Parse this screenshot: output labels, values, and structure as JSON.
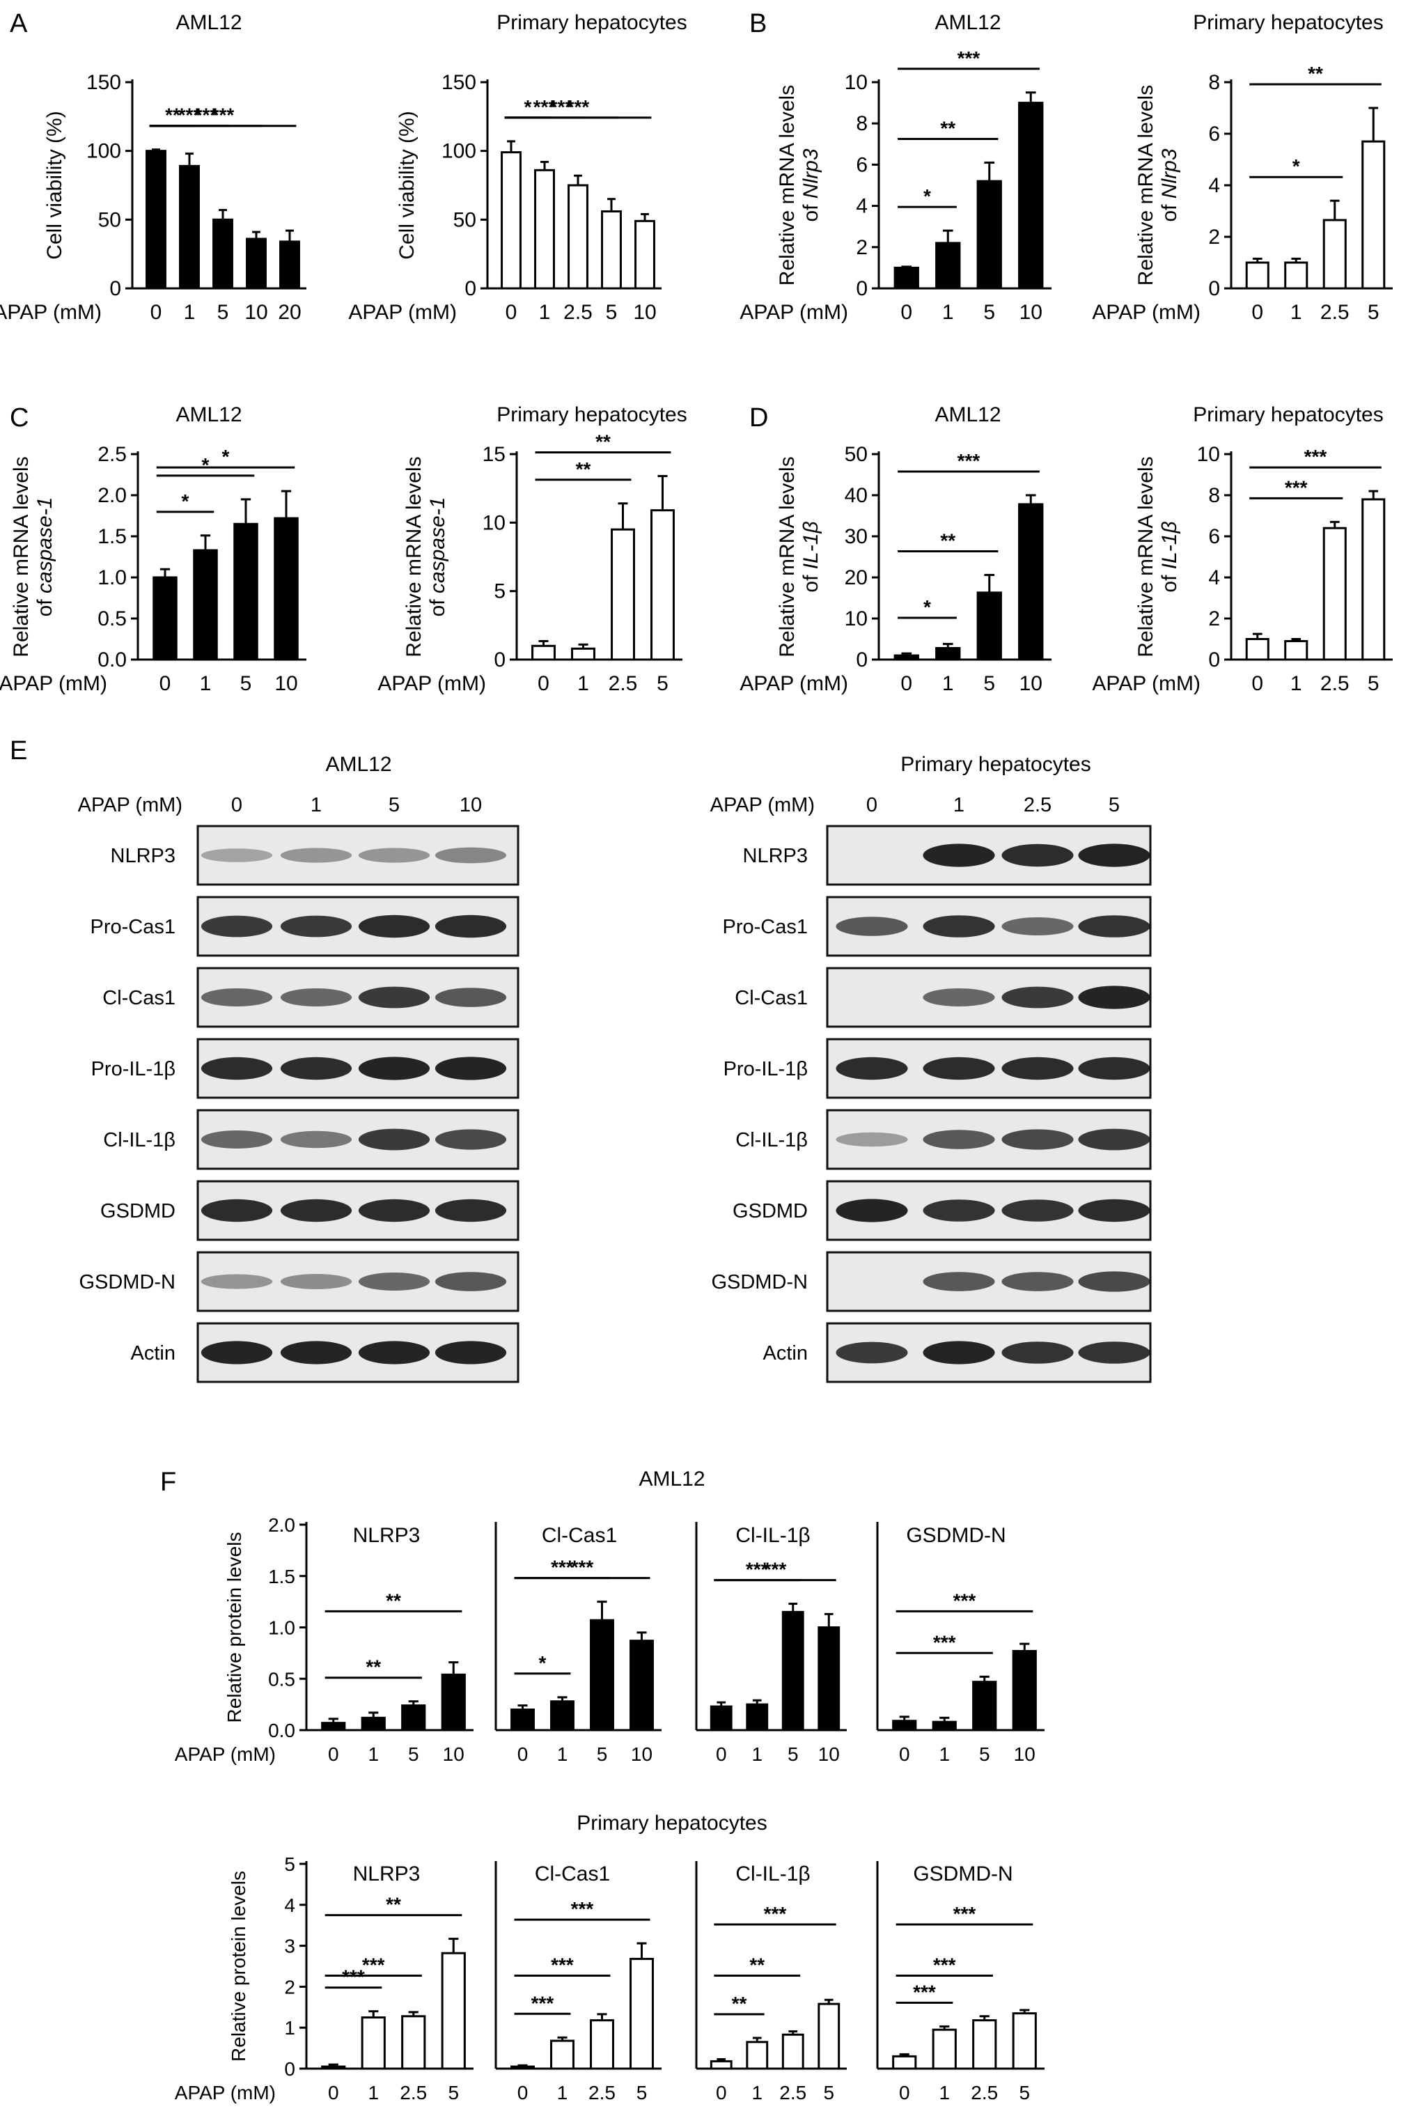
{
  "figure": {
    "panel_labels": [
      "A",
      "B",
      "C",
      "D",
      "E",
      "F"
    ],
    "apap_label": "APAP (mM)",
    "sig_symbols": [
      "*",
      "**",
      "***"
    ]
  },
  "blots": {
    "left": {
      "title": "AML12",
      "doses": [
        "0",
        "1",
        "5",
        "10"
      ],
      "rows": [
        "NLRP3",
        "Pro-Cas1",
        "Cl-Cas1",
        "Pro-IL-1β",
        "Cl-IL-1β",
        "GSDMD",
        "GSDMD-N",
        "Actin"
      ]
    },
    "right": {
      "title": "Primary hepatocytes",
      "doses": [
        "0",
        "1",
        "2.5",
        "5"
      ],
      "rows": [
        "NLRP3",
        "Pro-Cas1",
        "Cl-Cas1",
        "Pro-IL-1β",
        "Cl-IL-1β",
        "GSDMD",
        "GSDMD-N",
        "Actin"
      ]
    }
  },
  "panel_f": {
    "group_titles": [
      "AML12",
      "Primary hepatocytes"
    ]
  },
  "chart_data": [
    {
      "type": "bar",
      "panel": "A",
      "title": "AML12",
      "categories": [
        "0",
        "1",
        "5",
        "10",
        "20"
      ],
      "values": [
        100,
        89,
        50,
        36,
        34
      ],
      "errors": [
        1,
        9,
        7,
        5,
        8
      ],
      "ylabel": "Cell viability (%)",
      "xlabel": "APAP (mM)",
      "ylim": [
        0,
        150
      ],
      "yticks": [
        0,
        50,
        100,
        150
      ],
      "fill": "#000000",
      "significance": [
        {
          "from": "0",
          "to": "1",
          "label": "**"
        },
        {
          "from": "0",
          "to": "5",
          "label": "***"
        },
        {
          "from": "0",
          "to": "10",
          "label": "***"
        },
        {
          "from": "0",
          "to": "20",
          "label": "***"
        }
      ]
    },
    {
      "type": "bar",
      "panel": "A",
      "title": "Primary hepatocytes",
      "categories": [
        "0",
        "1",
        "2.5",
        "5",
        "10"
      ],
      "values": [
        99,
        86,
        75,
        56,
        49
      ],
      "errors": [
        8,
        6,
        7,
        9,
        5
      ],
      "ylabel": "Cell viability (%)",
      "xlabel": "APAP (mM)",
      "ylim": [
        0,
        150
      ],
      "yticks": [
        0,
        50,
        100,
        150
      ],
      "fill": "#ffffff",
      "significance": [
        {
          "from": "0",
          "to": "1",
          "label": "*"
        },
        {
          "from": "0",
          "to": "2.5",
          "label": "***"
        },
        {
          "from": "0",
          "to": "5",
          "label": "***"
        },
        {
          "from": "0",
          "to": "10",
          "label": "***"
        }
      ]
    },
    {
      "type": "bar",
      "panel": "B",
      "title": "AML12",
      "categories": [
        "0",
        "1",
        "5",
        "10"
      ],
      "values": [
        1.0,
        2.2,
        5.2,
        9.0
      ],
      "errors": [
        0.05,
        0.6,
        0.9,
        0.5
      ],
      "ylabel": "Relative mRNA levels of Nlrp3",
      "ylabel_main": "Relative mRNA levels",
      "ylabel_prefix": "of ",
      "ylabel_italic": "Nlrp3",
      "xlabel": "APAP (mM)",
      "ylim": [
        0,
        10
      ],
      "yticks": [
        0,
        2,
        4,
        6,
        8,
        10
      ],
      "fill": "#000000",
      "significance": [
        {
          "from": "0",
          "to": "1",
          "label": "*"
        },
        {
          "from": "0",
          "to": "5",
          "label": "**"
        },
        {
          "from": "0",
          "to": "10",
          "label": "***"
        }
      ]
    },
    {
      "type": "bar",
      "panel": "B",
      "title": "Primary hepatocytes",
      "categories": [
        "0",
        "1",
        "2.5",
        "5"
      ],
      "values": [
        1.0,
        1.0,
        2.65,
        5.7
      ],
      "errors": [
        0.15,
        0.15,
        0.75,
        1.3
      ],
      "ylabel": "Relative mRNA levels of Nlrp3",
      "ylabel_main": "Relative mRNA levels",
      "ylabel_prefix": "of ",
      "ylabel_italic": "Nlrp3",
      "xlabel": "APAP (mM)",
      "ylim": [
        0,
        8
      ],
      "yticks": [
        0,
        2,
        4,
        6,
        8
      ],
      "fill": "#ffffff",
      "significance": [
        {
          "from": "0",
          "to": "2.5",
          "label": "*"
        },
        {
          "from": "0",
          "to": "5",
          "label": "**"
        }
      ]
    },
    {
      "type": "bar",
      "panel": "C",
      "title": "AML12",
      "categories": [
        "0",
        "1",
        "5",
        "10"
      ],
      "values": [
        1.0,
        1.33,
        1.65,
        1.72
      ],
      "errors": [
        0.1,
        0.18,
        0.3,
        0.33
      ],
      "ylabel": "Relative mRNA levels of caspase-1",
      "ylabel_main": "Relative mRNA levels",
      "ylabel_prefix": "of ",
      "ylabel_italic": "caspase-1",
      "xlabel": "APAP (mM)",
      "ylim": [
        0,
        2.5
      ],
      "yticks": [
        0,
        0.5,
        1.0,
        1.5,
        2.0,
        2.5
      ],
      "ytick_labels": [
        "0.0",
        "0.5",
        "1.0",
        "1.5",
        "2.0",
        "2.5"
      ],
      "fill": "#000000",
      "significance": [
        {
          "from": "0",
          "to": "1",
          "label": "*"
        },
        {
          "from": "0",
          "to": "5",
          "label": "*"
        },
        {
          "from": "0",
          "to": "10",
          "label": "*"
        }
      ]
    },
    {
      "type": "bar",
      "panel": "C",
      "title": "Primary hepatocytes",
      "categories": [
        "0",
        "1",
        "2.5",
        "5"
      ],
      "values": [
        1.0,
        0.8,
        9.5,
        10.9
      ],
      "errors": [
        0.35,
        0.3,
        1.9,
        2.5
      ],
      "ylabel": "Relative mRNA levels of caspase-1",
      "ylabel_main": "Relative mRNA levels",
      "ylabel_prefix": "of ",
      "ylabel_italic": "caspase-1",
      "xlabel": "APAP (mM)",
      "ylim": [
        0,
        15
      ],
      "yticks": [
        0,
        5,
        10,
        15
      ],
      "fill": "#ffffff",
      "significance": [
        {
          "from": "0",
          "to": "2.5",
          "label": "**"
        },
        {
          "from": "0",
          "to": "5",
          "label": "**"
        }
      ]
    },
    {
      "type": "bar",
      "panel": "D",
      "title": "AML12",
      "categories": [
        "0",
        "1",
        "5",
        "10"
      ],
      "values": [
        1.0,
        2.8,
        16.3,
        37.8
      ],
      "errors": [
        0.5,
        1.0,
        4.3,
        2.2
      ],
      "ylabel": "Relative mRNA levels of IL-1β",
      "ylabel_main": "Relative mRNA levels",
      "ylabel_prefix": "of ",
      "ylabel_italic": "IL-1β",
      "xlabel": "APAP (mM)",
      "ylim": [
        0,
        50
      ],
      "yticks": [
        0,
        10,
        20,
        30,
        40,
        50
      ],
      "fill": "#000000",
      "significance": [
        {
          "from": "0",
          "to": "1",
          "label": "*"
        },
        {
          "from": "0",
          "to": "5",
          "label": "**"
        },
        {
          "from": "0",
          "to": "10",
          "label": "***"
        }
      ]
    },
    {
      "type": "bar",
      "panel": "D",
      "title": "Primary hepatocytes",
      "categories": [
        "0",
        "1",
        "2.5",
        "5"
      ],
      "values": [
        1.0,
        0.9,
        6.4,
        7.8
      ],
      "errors": [
        0.25,
        0.1,
        0.3,
        0.4
      ],
      "ylabel": "Relative mRNA levels of IL-1β",
      "ylabel_main": "Relative mRNA levels",
      "ylabel_prefix": "of ",
      "ylabel_italic": "IL-1β",
      "xlabel": "APAP (mM)",
      "ylim": [
        0,
        10
      ],
      "yticks": [
        0,
        2,
        4,
        6,
        8,
        10
      ],
      "fill": "#ffffff",
      "significance": [
        {
          "from": "0",
          "to": "2.5",
          "label": "***"
        },
        {
          "from": "0",
          "to": "5",
          "label": "***"
        }
      ]
    },
    {
      "type": "bar",
      "panel": "F",
      "group": "AML12",
      "title": "NLRP3",
      "categories": [
        "0",
        "1",
        "5",
        "10"
      ],
      "values": [
        0.07,
        0.12,
        0.24,
        0.54
      ],
      "errors": [
        0.04,
        0.05,
        0.04,
        0.12
      ],
      "ylabel": "Relative protein levels",
      "xlabel": "APAP (mM)",
      "ylim": [
        0,
        2.0
      ],
      "yticks": [
        0,
        0.5,
        1.0,
        1.5,
        2.0
      ],
      "ytick_labels": [
        "0.0",
        "0.5",
        "1.0",
        "1.5",
        "2.0"
      ],
      "fill": "#000000",
      "significance": [
        {
          "from": "0",
          "to": "5",
          "label": "**"
        },
        {
          "from": "0",
          "to": "10",
          "label": "**"
        }
      ]
    },
    {
      "type": "bar",
      "panel": "F",
      "group": "AML12",
      "title": "Cl-Cas1",
      "categories": [
        "0",
        "1",
        "5",
        "10"
      ],
      "values": [
        0.2,
        0.28,
        1.07,
        0.87
      ],
      "errors": [
        0.04,
        0.04,
        0.18,
        0.08
      ],
      "ylabel": "",
      "xlabel": "",
      "ylim": [
        0,
        2.0
      ],
      "fill": "#000000",
      "significance": [
        {
          "from": "0",
          "to": "1",
          "label": "*"
        },
        {
          "from": "0",
          "to": "5",
          "label": "***"
        },
        {
          "from": "0",
          "to": "10",
          "label": "***"
        }
      ]
    },
    {
      "type": "bar",
      "panel": "F",
      "group": "AML12",
      "title": "Cl-IL-1β",
      "categories": [
        "0",
        "1",
        "5",
        "10"
      ],
      "values": [
        0.23,
        0.25,
        1.15,
        1.0
      ],
      "errors": [
        0.04,
        0.04,
        0.08,
        0.13
      ],
      "ylabel": "",
      "xlabel": "",
      "ylim": [
        0,
        2.0
      ],
      "fill": "#000000",
      "significance": [
        {
          "from": "0",
          "to": "5",
          "label": "***"
        },
        {
          "from": "0",
          "to": "10",
          "label": "***"
        }
      ]
    },
    {
      "type": "bar",
      "panel": "F",
      "group": "AML12",
      "title": "GSDMD-N",
      "categories": [
        "0",
        "1",
        "5",
        "10"
      ],
      "values": [
        0.09,
        0.08,
        0.47,
        0.77
      ],
      "errors": [
        0.04,
        0.04,
        0.05,
        0.07
      ],
      "ylabel": "",
      "xlabel": "",
      "ylim": [
        0,
        2.0
      ],
      "fill": "#000000",
      "significance": [
        {
          "from": "0",
          "to": "5",
          "label": "***"
        },
        {
          "from": "0",
          "to": "10",
          "label": "***"
        }
      ]
    },
    {
      "type": "bar",
      "panel": "F",
      "group": "Primary hepatocytes",
      "title": "NLRP3",
      "categories": [
        "0",
        "1",
        "2.5",
        "5"
      ],
      "values": [
        0.05,
        1.25,
        1.28,
        2.82
      ],
      "errors": [
        0.05,
        0.15,
        0.1,
        0.35
      ],
      "ylabel": "Relative protein levels",
      "xlabel": "APAP (mM)",
      "ylim": [
        0,
        5
      ],
      "yticks": [
        0,
        1,
        2,
        3,
        4,
        5
      ],
      "fill": "#ffffff",
      "significance": [
        {
          "from": "0",
          "to": "1",
          "label": "***"
        },
        {
          "from": "0",
          "to": "2.5",
          "label": "***"
        },
        {
          "from": "0",
          "to": "5",
          "label": "**"
        }
      ]
    },
    {
      "type": "bar",
      "panel": "F",
      "group": "Primary hepatocytes",
      "title": "Cl-Cas1",
      "categories": [
        "0",
        "1",
        "2.5",
        "5"
      ],
      "values": [
        0.05,
        0.68,
        1.18,
        2.68
      ],
      "errors": [
        0.03,
        0.08,
        0.15,
        0.38
      ],
      "ylabel": "",
      "xlabel": "",
      "ylim": [
        0,
        5
      ],
      "fill": "#ffffff",
      "significance": [
        {
          "from": "0",
          "to": "1",
          "label": "***"
        },
        {
          "from": "0",
          "to": "2.5",
          "label": "***"
        },
        {
          "from": "0",
          "to": "5",
          "label": "***"
        }
      ]
    },
    {
      "type": "bar",
      "panel": "F",
      "group": "Primary hepatocytes",
      "title": "Cl-IL-1β",
      "categories": [
        "0",
        "1",
        "2.5",
        "5"
      ],
      "values": [
        0.18,
        0.65,
        0.83,
        1.58
      ],
      "errors": [
        0.05,
        0.1,
        0.08,
        0.1
      ],
      "ylabel": "",
      "xlabel": "",
      "ylim": [
        0,
        5
      ],
      "fill": "#ffffff",
      "significance": [
        {
          "from": "0",
          "to": "1",
          "label": "**"
        },
        {
          "from": "0",
          "to": "2.5",
          "label": "**"
        },
        {
          "from": "0",
          "to": "5",
          "label": "***"
        }
      ]
    },
    {
      "type": "bar",
      "panel": "F",
      "group": "Primary hepatocytes",
      "title": "GSDMD-N",
      "categories": [
        "0",
        "1",
        "2.5",
        "5"
      ],
      "values": [
        0.3,
        0.95,
        1.18,
        1.35
      ],
      "errors": [
        0.05,
        0.08,
        0.1,
        0.08
      ],
      "ylabel": "",
      "xlabel": "",
      "ylim": [
        0,
        5
      ],
      "fill": "#ffffff",
      "significance": [
        {
          "from": "0",
          "to": "1",
          "label": "***"
        },
        {
          "from": "0",
          "to": "2.5",
          "label": "***"
        },
        {
          "from": "0",
          "to": "5",
          "label": "***"
        }
      ]
    }
  ]
}
